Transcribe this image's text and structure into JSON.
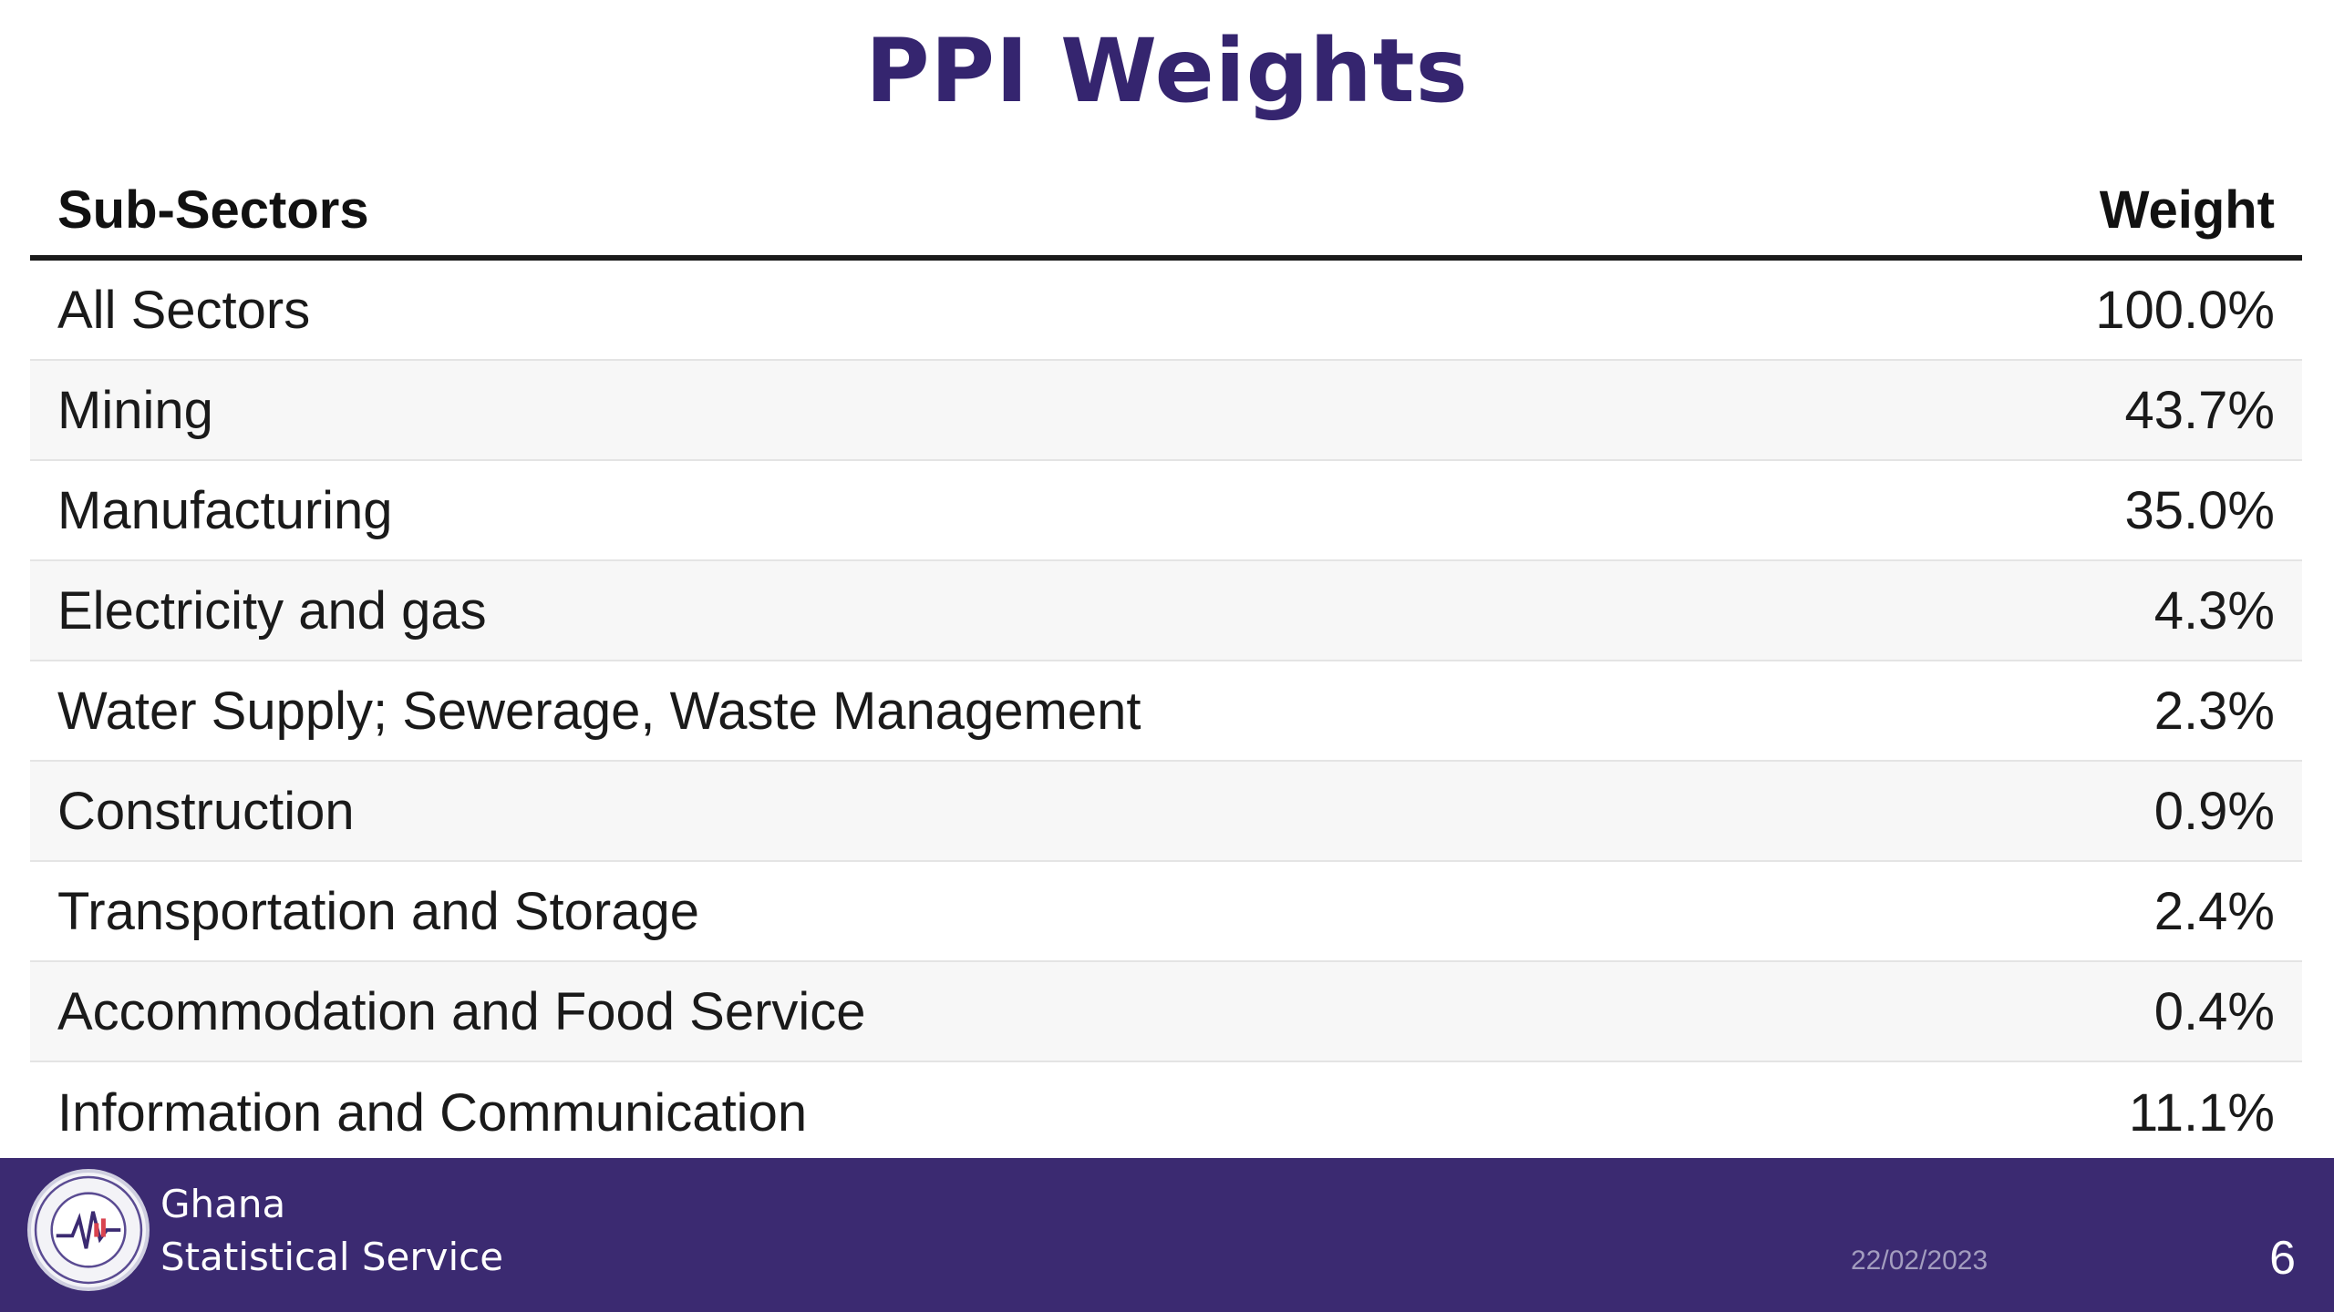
{
  "title": "PPI Weights",
  "table": {
    "headers": {
      "sector": "Sub-Sectors",
      "weight": "Weight"
    },
    "rows": [
      {
        "sector": "All Sectors",
        "weight": "100.0%"
      },
      {
        "sector": "Mining",
        "weight": "43.7%"
      },
      {
        "sector": "Manufacturing",
        "weight": "35.0%"
      },
      {
        "sector": "Electricity and gas",
        "weight": "4.3%"
      },
      {
        "sector": "Water Supply; Sewerage, Waste Management",
        "weight": "2.3%"
      },
      {
        "sector": "Construction",
        "weight": "0.9%"
      },
      {
        "sector": "Transportation and Storage",
        "weight": "2.4%"
      },
      {
        "sector": "Accommodation and Food Service",
        "weight": "0.4%"
      },
      {
        "sector": "Information and Communication",
        "weight": "11.1%"
      }
    ]
  },
  "footer": {
    "org_line1": "Ghana",
    "org_line2": "Statistical Service",
    "logo_icon": "ghana-statistical-service-seal",
    "date": "22/02/2023",
    "page_number": "6"
  },
  "colors": {
    "brand_purple": "#3b2a71",
    "title_purple": "#35256f"
  }
}
